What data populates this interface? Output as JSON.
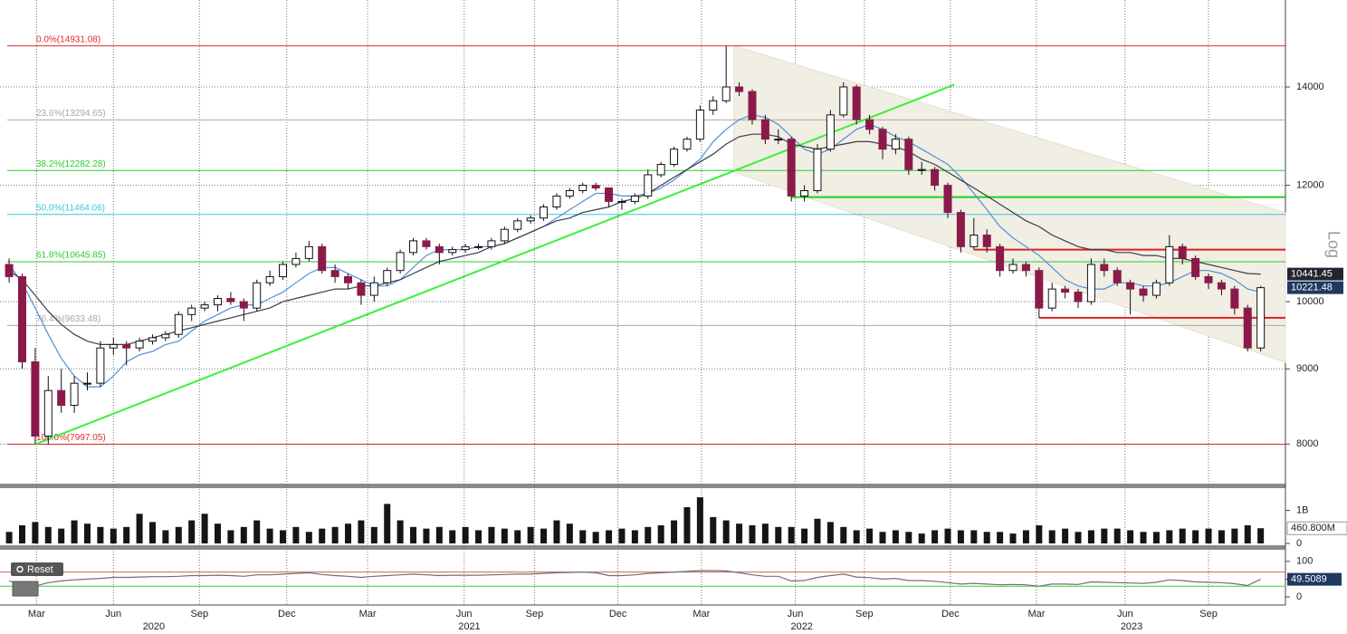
{
  "chart_data": [
    {
      "type": "candlestick",
      "log": true,
      "axis_label": "Log",
      "grid": true,
      "xlim": [
        -0.7,
        97.9
      ],
      "ylim": [
        7540,
        15930
      ],
      "yticks": [
        8000,
        9000,
        10000,
        12000,
        14000
      ],
      "up_color": "#ffffff",
      "down_color": "#8b1a4a",
      "xticks": [
        {
          "value": 2.1,
          "label": "Mar"
        },
        {
          "value": 8,
          "label": "Jun"
        },
        {
          "value": 14.6,
          "label": "Sep"
        },
        {
          "value": 21.3,
          "label": "Dec"
        },
        {
          "value": 27.5,
          "label": "Mar"
        },
        {
          "value": 34.9,
          "label": "Jun"
        },
        {
          "value": 40.3,
          "label": "Sep"
        },
        {
          "value": 46.7,
          "label": "Dec"
        },
        {
          "value": 53.1,
          "label": "Mar"
        },
        {
          "value": 60.3,
          "label": "Jun"
        },
        {
          "value": 65.6,
          "label": "Sep"
        },
        {
          "value": 72.2,
          "label": "Dec"
        },
        {
          "value": 78.8,
          "label": "Mar"
        },
        {
          "value": 85.6,
          "label": "Jun"
        },
        {
          "value": 92,
          "label": "Sep"
        }
      ],
      "year_labels": [
        {
          "value": 11.1,
          "label": "2020"
        },
        {
          "value": 35.3,
          "label": "2021"
        },
        {
          "value": 60.8,
          "label": "2022"
        },
        {
          "value": 86.1,
          "label": "2023"
        }
      ],
      "candles": [
        [
          10600,
          10700,
          10300,
          10400
        ],
        [
          10400,
          10450,
          9000,
          9100
        ],
        [
          9100,
          9300,
          7997,
          8100
        ],
        [
          8100,
          8900,
          8000,
          8700
        ],
        [
          8700,
          9000,
          8400,
          8500
        ],
        [
          8500,
          8900,
          8400,
          8800
        ],
        [
          8800,
          8950,
          8700,
          8800
        ],
        [
          8800,
          9400,
          8750,
          9300
        ],
        [
          9300,
          9450,
          9200,
          9350
        ],
        [
          9350,
          9400,
          9050,
          9300
        ],
        [
          9300,
          9450,
          9250,
          9400
        ],
        [
          9400,
          9500,
          9350,
          9450
        ],
        [
          9450,
          9550,
          9400,
          9500
        ],
        [
          9500,
          9850,
          9450,
          9800
        ],
        [
          9800,
          9950,
          9700,
          9900
        ],
        [
          9900,
          10000,
          9850,
          9950
        ],
        [
          9950,
          10100,
          9850,
          10050
        ],
        [
          10050,
          10150,
          9950,
          10000
        ],
        [
          10000,
          10050,
          9700,
          9900
        ],
        [
          9900,
          10350,
          9850,
          10300
        ],
        [
          10300,
          10500,
          10250,
          10400
        ],
        [
          10400,
          10650,
          10350,
          10600
        ],
        [
          10600,
          10800,
          10550,
          10700
        ],
        [
          10700,
          11000,
          10650,
          10900
        ],
        [
          10900,
          10950,
          10450,
          10500
        ],
        [
          10500,
          10600,
          10300,
          10400
        ],
        [
          10400,
          10450,
          10200,
          10300
        ],
        [
          10300,
          10350,
          9950,
          10100
        ],
        [
          10100,
          10400,
          10000,
          10300
        ],
        [
          10300,
          10550,
          10250,
          10500
        ],
        [
          10500,
          10850,
          10450,
          10800
        ],
        [
          10800,
          11050,
          10750,
          11000
        ],
        [
          11000,
          11050,
          10850,
          10900
        ],
        [
          10900,
          10950,
          10600,
          10800
        ],
        [
          10800,
          10900,
          10750,
          10850
        ],
        [
          10850,
          10950,
          10800,
          10900
        ],
        [
          10900,
          10950,
          10850,
          10900
        ],
        [
          10900,
          11050,
          10850,
          11000
        ],
        [
          11000,
          11250,
          10950,
          11200
        ],
        [
          11200,
          11400,
          11150,
          11350
        ],
        [
          11350,
          11450,
          11300,
          11400
        ],
        [
          11400,
          11650,
          11350,
          11600
        ],
        [
          11600,
          11850,
          11550,
          11800
        ],
        [
          11800,
          11950,
          11750,
          11900
        ],
        [
          11900,
          12050,
          11850,
          12000
        ],
        [
          12000,
          12050,
          11900,
          11950
        ],
        [
          11950,
          11950,
          11600,
          11700
        ],
        [
          11700,
          11750,
          11550,
          11700
        ],
        [
          11700,
          11850,
          11650,
          11800
        ],
        [
          11800,
          12300,
          11750,
          12200
        ],
        [
          12200,
          12450,
          12150,
          12400
        ],
        [
          12400,
          12750,
          12350,
          12700
        ],
        [
          12700,
          12950,
          12650,
          12900
        ],
        [
          12900,
          13600,
          12850,
          13500
        ],
        [
          13500,
          13800,
          13400,
          13700
        ],
        [
          13700,
          14931,
          13650,
          14000
        ],
        [
          14000,
          14100,
          13800,
          13900
        ],
        [
          13900,
          13950,
          13200,
          13300
        ],
        [
          13300,
          13400,
          12800,
          12900
        ],
        [
          12900,
          13100,
          12800,
          12900
        ],
        [
          12900,
          12950,
          11700,
          11800
        ],
        [
          11800,
          12000,
          11700,
          11900
        ],
        [
          11900,
          12800,
          11850,
          12700
        ],
        [
          12700,
          13500,
          12650,
          13400
        ],
        [
          13400,
          14100,
          13350,
          14000
        ],
        [
          14000,
          14050,
          13200,
          13300
        ],
        [
          13300,
          13400,
          13000,
          13100
        ],
        [
          13100,
          13150,
          12500,
          12700
        ],
        [
          12700,
          13000,
          12600,
          12900
        ],
        [
          12900,
          12950,
          12200,
          12300
        ],
        [
          12300,
          12450,
          12200,
          12300
        ],
        [
          12300,
          12350,
          11900,
          12000
        ],
        [
          12000,
          12050,
          11400,
          11500
        ],
        [
          11500,
          11550,
          10800,
          10900
        ],
        [
          10900,
          11400,
          10850,
          11100
        ],
        [
          11100,
          11200,
          10800,
          10900
        ],
        [
          10900,
          10950,
          10400,
          10500
        ],
        [
          10500,
          10700,
          10450,
          10600
        ],
        [
          10600,
          10650,
          10400,
          10500
        ],
        [
          10500,
          10550,
          9750,
          9900
        ],
        [
          9900,
          10300,
          9850,
          10200
        ],
        [
          10200,
          10250,
          10050,
          10150
        ],
        [
          10150,
          10200,
          9900,
          10000
        ],
        [
          10000,
          10700,
          9950,
          10600
        ],
        [
          10600,
          10700,
          10400,
          10500
        ],
        [
          10500,
          10550,
          10250,
          10300
        ],
        [
          10300,
          10350,
          9800,
          10200
        ],
        [
          10200,
          10250,
          10000,
          10100
        ],
        [
          10100,
          10350,
          10050,
          10300
        ],
        [
          10300,
          11100,
          10250,
          10900
        ],
        [
          10900,
          10950,
          10600,
          10700
        ],
        [
          10700,
          10750,
          10350,
          10400
        ],
        [
          10400,
          10450,
          10200,
          10300
        ],
        [
          10300,
          10350,
          10100,
          10200
        ],
        [
          10200,
          10250,
          9800,
          9900
        ],
        [
          9900,
          9950,
          9250,
          9300
        ],
        [
          9300,
          10250,
          9250,
          10221.48
        ]
      ],
      "moving_averages": [
        {
          "color": "#4f8fd6",
          "values": [
            10600,
            10300,
            9900,
            9500,
            9150,
            8900,
            8750,
            8750,
            8900,
            9100,
            9200,
            9250,
            9350,
            9400,
            9550,
            9700,
            9800,
            9900,
            9950,
            9950,
            10050,
            10150,
            10300,
            10450,
            10550,
            10550,
            10450,
            10350,
            10250,
            10250,
            10350,
            10550,
            10750,
            10850,
            10850,
            10850,
            10900,
            10900,
            10950,
            11050,
            11150,
            11250,
            11400,
            11550,
            11700,
            11850,
            11850,
            11800,
            11800,
            11850,
            11950,
            12100,
            12300,
            12500,
            12850,
            13100,
            13300,
            13400,
            13350,
            13200,
            12950,
            12700,
            12600,
            12700,
            12900,
            13100,
            13200,
            13100,
            12950,
            12850,
            12700,
            12550,
            12400,
            12150,
            11850,
            11550,
            11250,
            11050,
            10900,
            10750,
            10550,
            10350,
            10250,
            10200,
            10200,
            10300,
            10300,
            10250,
            10250,
            10300,
            10400,
            10500,
            10500,
            10450,
            10350,
            10200,
            10150
          ]
        },
        {
          "color": "#3a3d4a",
          "values": [
            10500,
            10350,
            10100,
            9850,
            9650,
            9500,
            9400,
            9350,
            9350,
            9350,
            9400,
            9450,
            9500,
            9550,
            9600,
            9650,
            9700,
            9750,
            9800,
            9850,
            9900,
            10000,
            10050,
            10100,
            10150,
            10200,
            10200,
            10250,
            10250,
            10300,
            10350,
            10450,
            10550,
            10650,
            10700,
            10750,
            10800,
            10900,
            10950,
            11050,
            11150,
            11250,
            11350,
            11400,
            11500,
            11550,
            11600,
            11700,
            11750,
            11850,
            12000,
            12150,
            12300,
            12450,
            12600,
            12800,
            12950,
            13000,
            13000,
            12950,
            12800,
            12750,
            12700,
            12750,
            12800,
            12850,
            12850,
            12800,
            12750,
            12650,
            12500,
            12400,
            12250,
            12100,
            11950,
            11800,
            11650,
            11500,
            11350,
            11250,
            11100,
            11000,
            10900,
            10850,
            10850,
            10800,
            10800,
            10750,
            10750,
            10700,
            10700,
            10650,
            10600,
            10550,
            10500,
            10450,
            10441.45
          ]
        }
      ],
      "fib_levels": [
        {
          "label": "0.0%(14931.08)",
          "value": 14931.08,
          "color": "#e02b2b"
        },
        {
          "label": "23.6%(13294.65)",
          "value": 13294.65,
          "color": "#a8a8a8"
        },
        {
          "label": "38.2%(12282.28)",
          "value": 12282.28,
          "color": "#2fc82f"
        },
        {
          "label": "50.0%(11464.06)",
          "value": 11464.06,
          "color": "#35c9d8"
        },
        {
          "label": "61.8%(10645.85)",
          "value": 10645.85,
          "color": "#2fc82f"
        },
        {
          "label": "76.4%(9633.48)",
          "value": 9633.48,
          "color": "#a8a8a8"
        },
        {
          "label": "100.0%(7997.05)",
          "value": 7997.05,
          "color": "#e02b2b"
        }
      ],
      "trendline": {
        "color": "#3af03a",
        "points": [
          [
            2,
            7997
          ],
          [
            72.5,
            14050
          ]
        ]
      },
      "channel": {
        "color": "#f1eee4",
        "upper": [
          [
            55.6,
            14931
          ],
          [
            97.9,
            11493
          ]
        ],
        "lower": [
          [
            55.6,
            12250
          ],
          [
            97.9,
            9091
          ]
        ]
      },
      "levels": [
        {
          "value": 11780,
          "from": 60,
          "color": "#1fd01f"
        },
        {
          "value": 10850,
          "from": 74,
          "color": "#e02020"
        },
        {
          "value": 9750,
          "from": 79,
          "color": "#e02020"
        }
      ]
    },
    {
      "type": "bar",
      "color": "#151515",
      "ylim": [
        0,
        1650000000
      ],
      "yticks": [
        0,
        {
          "value": 1000000000,
          "label": "1B"
        }
      ],
      "last_label": "460.800M",
      "values": [
        350000000.0,
        550000000.0,
        650000000.0,
        500000000.0,
        450000000.0,
        700000000.0,
        600000000.0,
        500000000.0,
        450000000.0,
        500000000.0,
        900000000.0,
        650000000.0,
        400000000.0,
        500000000.0,
        700000000.0,
        900000000.0,
        600000000.0,
        400000000.0,
        500000000.0,
        700000000.0,
        450000000.0,
        400000000.0,
        500000000.0,
        350000000.0,
        450000000.0,
        500000000.0,
        600000000.0,
        700000000.0,
        500000000.0,
        1200000000.0,
        700000000.0,
        500000000.0,
        450000000.0,
        500000000.0,
        400000000.0,
        500000000.0,
        400000000.0,
        500000000.0,
        450000000.0,
        400000000.0,
        500000000.0,
        450000000.0,
        700000000.0,
        600000000.0,
        400000000.0,
        350000000.0,
        400000000.0,
        450000000.0,
        400000000.0,
        500000000.0,
        550000000.0,
        700000000.0,
        1100000000.0,
        1400000000.0,
        800000000.0,
        700000000.0,
        600000000.0,
        550000000.0,
        600000000.0,
        500000000.0,
        500000000.0,
        450000000.0,
        750000000.0,
        650000000.0,
        500000000.0,
        400000000.0,
        450000000.0,
        350000000.0,
        400000000.0,
        350000000.0,
        300000000.0,
        400000000.0,
        450000000.0,
        400000000.0,
        400000000.0,
        350000000.0,
        350000000.0,
        300000000.0,
        400000000.0,
        550000000.0,
        400000000.0,
        450000000.0,
        350000000.0,
        400000000.0,
        450000000.0,
        450000000.0,
        400000000.0,
        350000000.0,
        350000000.0,
        400000000.0,
        450000000.0,
        400000000.0,
        450000000.0,
        400000000.0,
        450000000.0,
        550000000.0,
        460800000.0
      ]
    },
    {
      "type": "line",
      "color": "#707070",
      "button": "Reset",
      "ylim": [
        -23,
        120
      ],
      "yticks": [
        0,
        50,
        100
      ],
      "levels": [
        {
          "value": 70,
          "color": "#e05a5a"
        },
        {
          "value": 30,
          "color": "#3ccf3c"
        }
      ],
      "values": [
        45,
        35,
        30,
        40,
        45,
        48,
        50,
        52,
        55,
        55,
        56,
        57,
        57,
        58,
        60,
        60,
        61,
        60,
        58,
        62,
        62,
        64,
        66,
        68,
        63,
        60,
        58,
        55,
        58,
        60,
        62,
        64,
        62,
        60,
        61,
        61,
        61,
        62,
        63,
        64,
        64,
        66,
        68,
        69,
        70,
        68,
        60,
        60,
        62,
        66,
        68,
        70,
        72,
        74,
        74,
        73,
        68,
        62,
        58,
        58,
        45,
        46,
        55,
        60,
        64,
        56,
        54,
        50,
        52,
        46,
        46,
        44,
        40,
        36,
        38,
        36,
        34,
        35,
        34,
        30,
        36,
        36,
        35,
        42,
        41,
        40,
        39,
        38,
        41,
        48,
        46,
        42,
        41,
        40,
        37,
        32,
        49.5089
      ]
    }
  ]
}
